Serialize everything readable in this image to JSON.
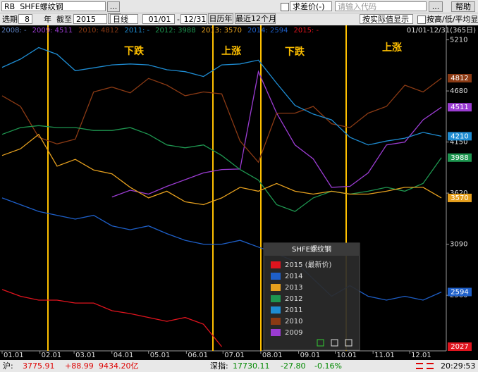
{
  "window": {
    "code": "RB",
    "name": "SHFE螺纹钢",
    "more": "...",
    "diff_label": "求差价(-)",
    "search_placeholder": "请输入代码",
    "more2": "...",
    "help": "帮助"
  },
  "toolbar": {
    "period_label": "选期",
    "years": "8",
    "years_unit": "年",
    "until_label": "截至",
    "until_year": "2015",
    "more": "...",
    "frequency": "日线",
    "from": "01/01",
    "dash": "-",
    "to": "12/31",
    "calendar_year": "日历年",
    "last_12_months": "最近12个月",
    "display_mode": "按实际值显示",
    "hla_label": "按高/低/平均显示"
  },
  "chart_data": {
    "type": "line",
    "range_label": "01/01-12/31(365日)",
    "legend_header": [
      {
        "text": "2008: -",
        "color": "#5b7fbf"
      },
      {
        "text": "2009: 4511",
        "color": "#9b3cd2"
      },
      {
        "text": "2010: 4812",
        "color": "#8b3a14"
      },
      {
        "text": "2011: -",
        "color": "#1e8cd2"
      },
      {
        "text": "2012: 3988",
        "color": "#1e9650"
      },
      {
        "text": "2013: 3570",
        "color": "#e6a01e"
      },
      {
        "text": "2014: 2594",
        "color": "#1e5fc8"
      },
      {
        "text": "2015: -",
        "color": "#e0141e"
      }
    ],
    "annotations": [
      "下跌",
      "上涨",
      "下跌",
      "上涨"
    ],
    "popup_title": "SHFE螺纹钢",
    "x": [
      1,
      16,
      31,
      46,
      61,
      76,
      91,
      106,
      121,
      136,
      151,
      166,
      181,
      196,
      211,
      226,
      241,
      256,
      271,
      286,
      301,
      316,
      331,
      346,
      361
    ],
    "xlim": [
      1,
      365
    ],
    "xticks": [
      {
        "value": 1,
        "label": "01.01"
      },
      {
        "value": 32,
        "label": "02.01"
      },
      {
        "value": 60,
        "label": "03.01"
      },
      {
        "value": 91,
        "label": "04.01"
      },
      {
        "value": 121,
        "label": "05.01"
      },
      {
        "value": 152,
        "label": "06.01"
      },
      {
        "value": 182,
        "label": "07.01"
      },
      {
        "value": 213,
        "label": "08.01"
      },
      {
        "value": 244,
        "label": "09.01"
      },
      {
        "value": 274,
        "label": "10.01"
      },
      {
        "value": 305,
        "label": "11.01"
      },
      {
        "value": 335,
        "label": "12.01"
      }
    ],
    "ylim": [
      2020,
      5280
    ],
    "yticks": [
      5210,
      4680,
      4150,
      3620,
      3090,
      2560
    ],
    "series": [
      {
        "name": "2015 (最新价)",
        "color": "#e0141e",
        "values": [
          2620,
          2550,
          2510,
          2510,
          2480,
          2480,
          2400,
          2370,
          2330,
          2290,
          2330,
          2260,
          2027,
          null,
          null,
          null,
          null,
          null,
          null,
          null,
          null,
          null,
          null,
          null,
          null
        ]
      },
      {
        "name": "2014",
        "color": "#1e5fc8",
        "values": [
          3570,
          3500,
          3430,
          3390,
          3350,
          3390,
          3280,
          3240,
          3280,
          3200,
          3130,
          3090,
          3090,
          3130,
          3060,
          2990,
          2910,
          2730,
          2550,
          2660,
          2550,
          2510,
          2550,
          2510,
          2594
        ]
      },
      {
        "name": "2013",
        "color": "#e6a01e",
        "values": [
          4010,
          4080,
          4230,
          3900,
          3970,
          3860,
          3820,
          3680,
          3570,
          3640,
          3530,
          3500,
          3570,
          3680,
          3640,
          3720,
          3640,
          3610,
          3640,
          3610,
          3610,
          3640,
          3680,
          3680,
          3570
        ]
      },
      {
        "name": "2012",
        "color": "#1e9650",
        "values": [
          4230,
          4300,
          4320,
          4300,
          4300,
          4270,
          4270,
          4300,
          4230,
          4120,
          4090,
          4120,
          4010,
          3865,
          3755,
          3500,
          3430,
          3570,
          3640,
          3610,
          3640,
          3680,
          3640,
          3720,
          3988
        ]
      },
      {
        "name": "2011",
        "color": "#1e8cd2",
        "values": [
          4925,
          5010,
          5130,
          5060,
          4890,
          4920,
          4950,
          4960,
          4950,
          4900,
          4880,
          4830,
          4950,
          4960,
          5000,
          4760,
          4530,
          4440,
          4380,
          4200,
          4120,
          4160,
          4190,
          4250,
          4210
        ]
      },
      {
        "name": "2010",
        "color": "#8b3a14",
        "values": [
          4630,
          4520,
          4200,
          4130,
          4180,
          4670,
          4720,
          4660,
          4810,
          4740,
          4630,
          4670,
          4650,
          4160,
          3940,
          4450,
          4450,
          4520,
          4340,
          4300,
          4450,
          4520,
          4740,
          4670,
          4812
        ]
      },
      {
        "name": "2009",
        "color": "#9b3cd2",
        "values": [
          null,
          null,
          null,
          null,
          null,
          null,
          3580,
          3650,
          3610,
          3690,
          3760,
          3830,
          3865,
          3870,
          4880,
          4450,
          4120,
          3975,
          3680,
          3690,
          3830,
          4120,
          4150,
          4380,
          4511
        ]
      }
    ]
  },
  "status_bar": {
    "sh_label": "沪:",
    "sh_index": "3775.91",
    "sh_change": "+88.99",
    "sh_turnover": "9434.20亿",
    "sz_label": "深指:",
    "sz_index": "17730.11",
    "sz_change": "-27.80",
    "sz_pct": "-0.16%",
    "time": "20:29:53"
  }
}
